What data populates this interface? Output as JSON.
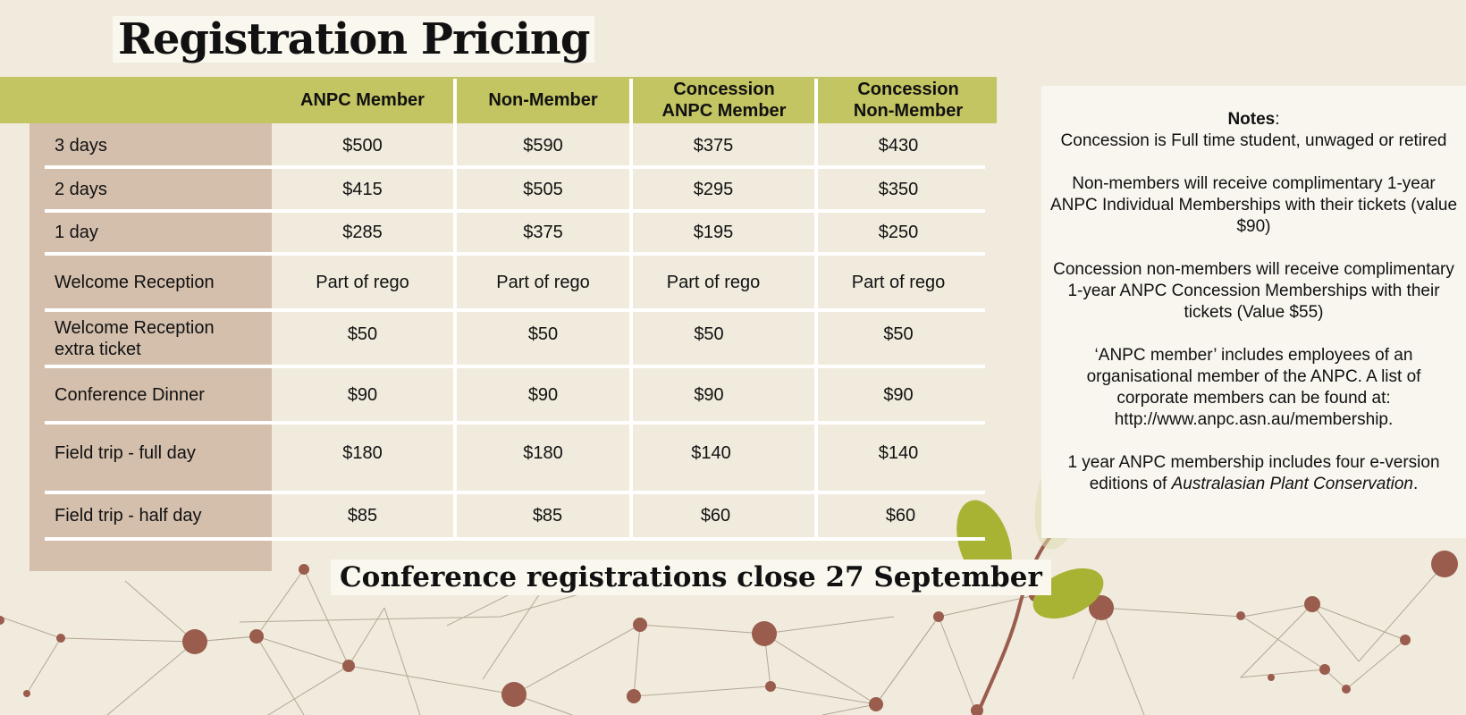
{
  "title": "Registration Pricing",
  "table": {
    "headers": [
      {
        "line1": "ANPC Member",
        "line2": ""
      },
      {
        "line1": "Non-Member",
        "line2": ""
      },
      {
        "line1": "Concession",
        "line2": "ANPC Member"
      },
      {
        "line1": "Concession",
        "line2": "Non-Member"
      }
    ],
    "rows": [
      {
        "label": "3 days",
        "label2": "",
        "values": [
          "$500",
          "$590",
          "$375",
          "$430"
        ]
      },
      {
        "label": "2 days",
        "label2": "",
        "values": [
          "$415",
          "$505",
          "$295",
          "$350"
        ]
      },
      {
        "label": "1 day",
        "label2": "",
        "values": [
          "$285",
          "$375",
          "$195",
          "$250"
        ]
      },
      {
        "label": "Welcome Reception",
        "label2": "",
        "values": [
          "Part of rego",
          "Part of rego",
          "Part of rego",
          "Part of rego"
        ]
      },
      {
        "label": "Welcome Reception",
        "label2": "extra ticket",
        "values": [
          "$50",
          "$50",
          "$50",
          "$50"
        ]
      },
      {
        "label": "Conference Dinner",
        "label2": "",
        "values": [
          "$90",
          "$90",
          "$90",
          "$90"
        ]
      },
      {
        "label": "Field trip - full day",
        "label2": "",
        "values": [
          "$180",
          "$180",
          "$140",
          "$140"
        ]
      },
      {
        "label": "Field trip - half day",
        "label2": "",
        "values": [
          "$85",
          "$85",
          "$60",
          "$60"
        ]
      }
    ]
  },
  "closing_banner": "Conference registrations close 27 September",
  "notes": {
    "heading": "Notes",
    "heading_suffix": ":",
    "line1": "Concession is Full time student, unwaged or retired",
    "para2": "Non-members will receive complimentary 1-year ANPC Individual Memberships with their tickets (value $90)",
    "para3": "Concession non-members will receive complimentary 1-year ANPC Concession Memberships with their tickets (Value $55)",
    "para4": "‘ANPC member’ includes employees of an organisational member of the ANPC. A list of corporate members can be found at: http://www.anpc.asn.au/membership.",
    "para5_start": "1 year ANPC membership includes four e-version editions of ",
    "para5_italic": "Australasian Plant Conservation",
    "para5_end": "."
  },
  "colors": {
    "background": "#f0ebdd",
    "header_band": "#c3c462",
    "label_column": "#d4bfad",
    "notes_panel": "#f8f6ef",
    "network_nodes": "#9a5c4c",
    "leaves": "#a8b334"
  }
}
